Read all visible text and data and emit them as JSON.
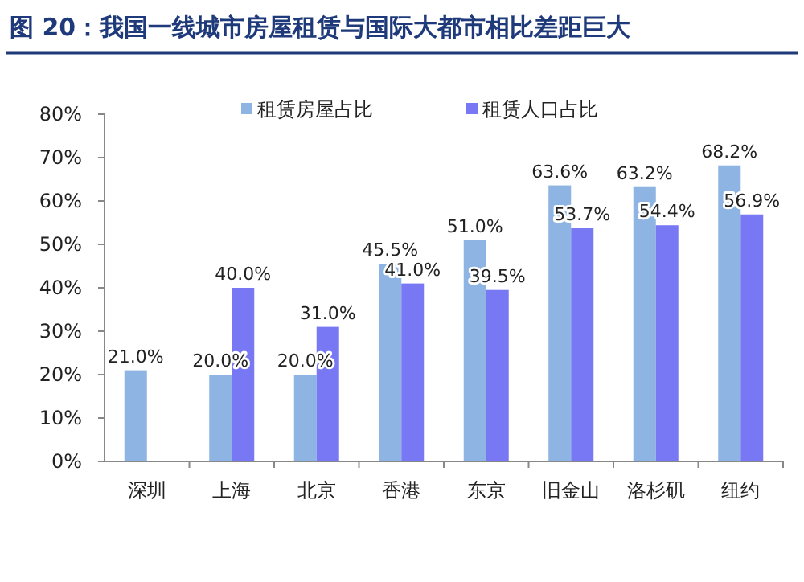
{
  "chart_data": {
    "type": "bar",
    "title": "图 20：我国一线城市房屋租赁与国际大都市相比差距巨大",
    "categories": [
      "深圳",
      "上海",
      "北京",
      "香港",
      "东京",
      "旧金山",
      "洛杉矶",
      "纽约"
    ],
    "series": [
      {
        "name": "租赁房屋占比",
        "color": "#8db4e2",
        "values": [
          21.0,
          20.0,
          20.0,
          45.5,
          51.0,
          63.6,
          63.2,
          68.2
        ],
        "value_labels": [
          "21.0%",
          "20.0%",
          "20.0%",
          "45.5%",
          "51.0%",
          "63.6%",
          "63.2%",
          "68.2%"
        ]
      },
      {
        "name": "租赁人口占比",
        "color": "#7878f5",
        "values": [
          null,
          40.0,
          31.0,
          41.0,
          39.5,
          53.7,
          54.4,
          56.9
        ],
        "value_labels": [
          null,
          "40.0%",
          "31.0%",
          "41.0%",
          "39.5%",
          "53.7%",
          "54.4%",
          "56.9%"
        ]
      }
    ],
    "ylim": [
      0,
      80
    ],
    "yticks": [
      {
        "value": 0,
        "label": "0%"
      },
      {
        "value": 10,
        "label": "10%"
      },
      {
        "value": 20,
        "label": "20%"
      },
      {
        "value": 30,
        "label": "30%"
      },
      {
        "value": 40,
        "label": "40%"
      },
      {
        "value": 50,
        "label": "50%"
      },
      {
        "value": 60,
        "label": "60%"
      },
      {
        "value": 70,
        "label": "70%"
      },
      {
        "value": 80,
        "label": "80%"
      }
    ],
    "legend": "top",
    "grid": false
  }
}
